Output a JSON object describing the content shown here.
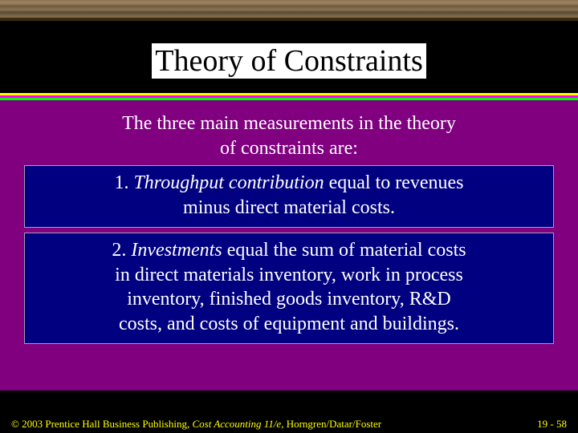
{
  "colors": {
    "background": "#000000",
    "content_bg": "#800080",
    "box_bg": "#000080",
    "box_border": "#a0a0c0",
    "title_bg": "#ffffff",
    "title_text": "#000000",
    "body_text": "#ffffff",
    "footer_text": "#ffff00",
    "line1": "#ffff00",
    "line2": "#ff00ff",
    "line3": "#00ff00"
  },
  "title": "Theory of Constraints",
  "intro": {
    "line1": "The three main measurements in the theory",
    "line2": "of constraints are:"
  },
  "box1": {
    "lead": "1. ",
    "italic": "Throughput contribution",
    "rest1": " equal to revenues",
    "line2": "minus direct material costs."
  },
  "box2": {
    "lead": "2. ",
    "italic": "Investments",
    "rest1": " equal the sum of material costs",
    "line2": "in direct materials inventory, work in process",
    "line3": "inventory, finished goods inventory, R&D",
    "line4": "costs, and costs of equipment and buildings."
  },
  "footer": {
    "copyright": "© 2003 Prentice Hall Business Publishing, ",
    "book": "Cost Accounting 11/e,",
    "authors": " Horngren/Datar/Foster",
    "page": "19 - 58"
  }
}
